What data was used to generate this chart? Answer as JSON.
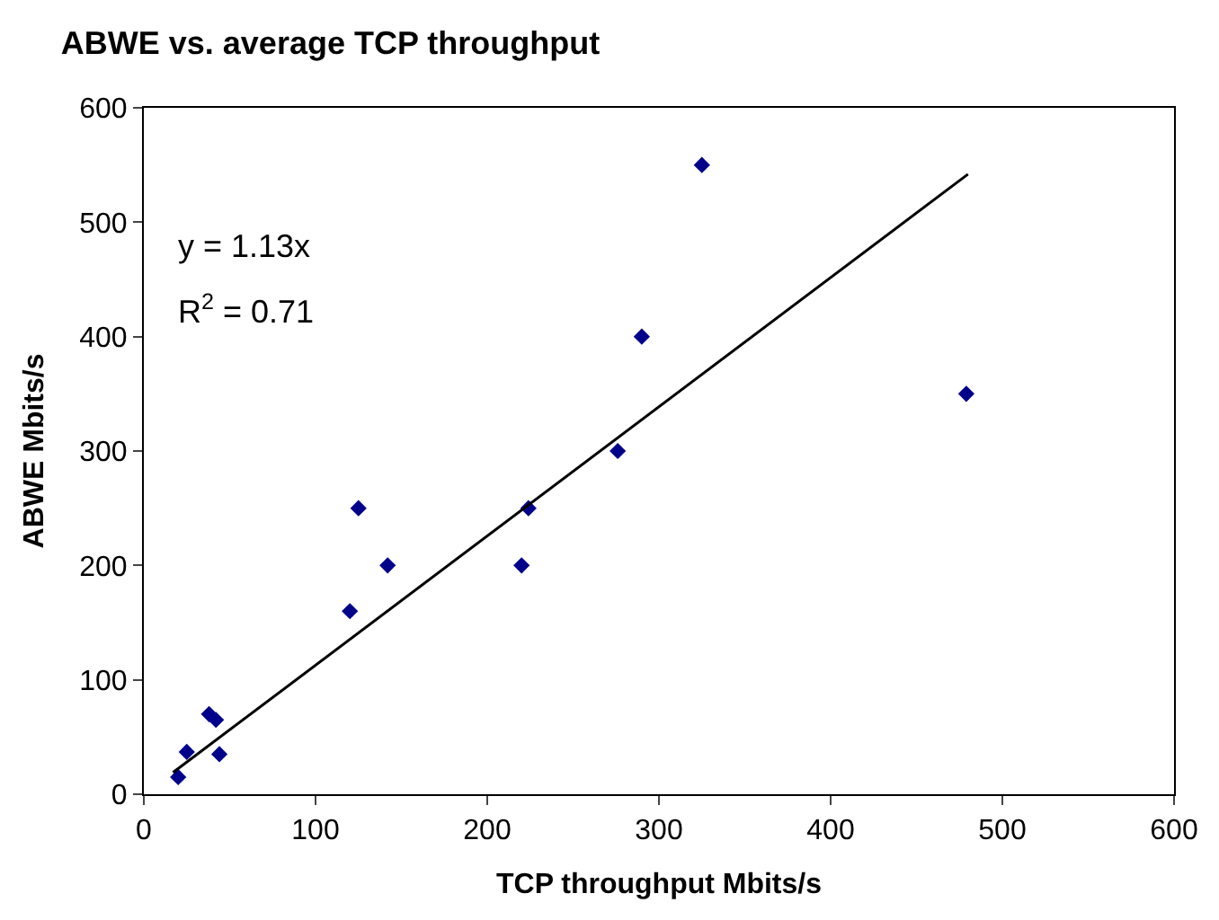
{
  "chart_data": {
    "type": "scatter",
    "title": "ABWE vs. average TCP throughput",
    "xlabel": "TCP throughput Mbits/s",
    "ylabel": "ABWE Mbits/s",
    "xlim": [
      0,
      600
    ],
    "xticks": [
      0,
      100,
      200,
      300,
      400,
      500,
      600
    ],
    "ylim": [
      0,
      600
    ],
    "yticks": [
      0,
      100,
      200,
      300,
      400,
      500,
      600
    ],
    "grid": false,
    "marker": "diamond",
    "series": [
      {
        "color": "#00008b",
        "x": [
          20,
          25,
          38,
          42,
          44,
          120,
          125,
          142,
          220,
          224,
          276,
          290,
          325,
          479
        ],
        "values": [
          15,
          37,
          70,
          65,
          35,
          160,
          250,
          200,
          200,
          250,
          300,
          400,
          550,
          350
        ]
      },
      {
        "type": "line",
        "color": "#000000",
        "marker": "none",
        "line_style": "solid",
        "x": [
          17,
          480
        ],
        "values": [
          19,
          542
        ]
      }
    ],
    "annotations": [
      "y = 1.13x",
      "R$^{2}$ = 0.71"
    ]
  }
}
